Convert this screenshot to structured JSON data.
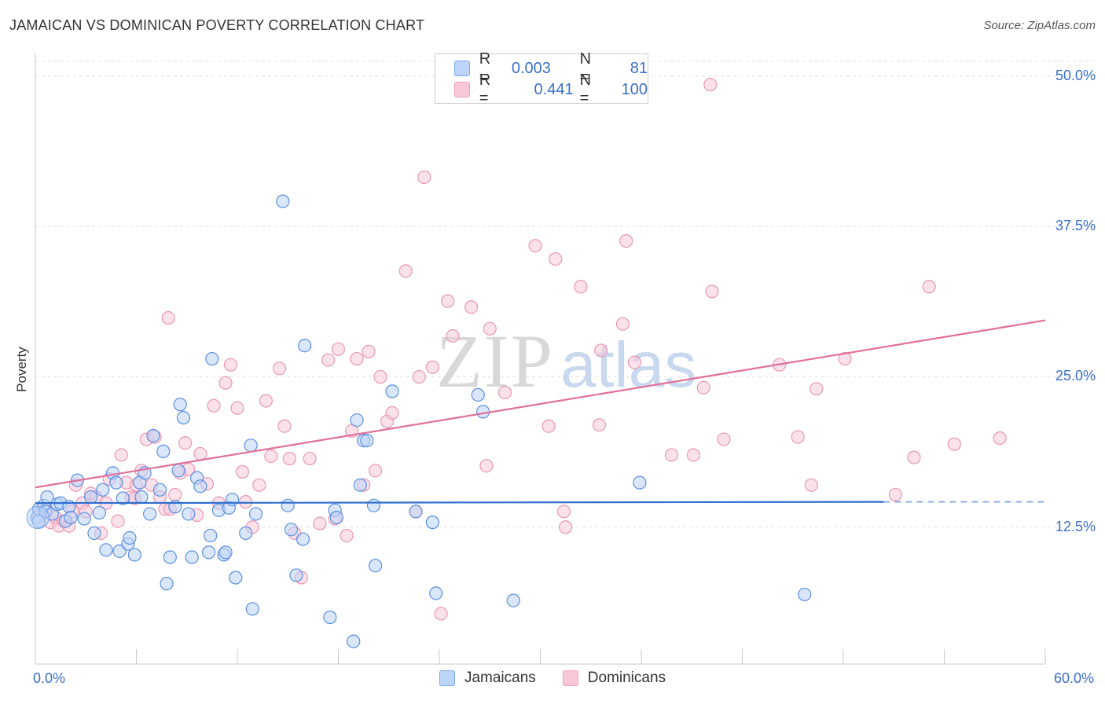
{
  "header": {
    "title": "JAMAICAN VS DOMINICAN POVERTY CORRELATION CHART",
    "source": "Source: ZipAtlas.com"
  },
  "legend": {
    "rows": [
      {
        "r_label": "R =",
        "r_value": "0.003",
        "n_label": "N =",
        "n_value": "81",
        "color": "#7aaaf0",
        "fill": "#bcd4f7"
      },
      {
        "r_label": "R =",
        "r_value": "0.441",
        "n_label": "N =",
        "n_value": "100",
        "color": "#f0a0bb",
        "fill": "#f8c8d8"
      }
    ]
  },
  "bottom_legend": [
    {
      "label": "Jamaicans",
      "color": "#7aaaf0",
      "fill": "#bcd4f7"
    },
    {
      "label": "Dominicans",
      "color": "#f0a0bb",
      "fill": "#f8c8d8"
    }
  ],
  "watermark": {
    "zip": "ZIP",
    "atlas": "atlas"
  },
  "chart_data": {
    "type": "scatter",
    "title": "JAMAICAN VS DOMINICAN POVERTY CORRELATION CHART",
    "xlabel": "",
    "ylabel": "Poverty",
    "xlim": [
      0,
      60
    ],
    "ylim": [
      0,
      50
    ],
    "x_tick_labels": [
      "0.0%",
      "60.0%"
    ],
    "y_tick_labels": [
      {
        "value": 12.5,
        "label": "12.5%"
      },
      {
        "value": 25.0,
        "label": "25.0%"
      },
      {
        "value": 37.5,
        "label": "37.5%"
      },
      {
        "value": 50.0,
        "label": "50.0%"
      }
    ],
    "grid": true,
    "series": [
      {
        "name": "Jamaicans",
        "color": "#7aaaf0",
        "trend": {
          "x": [
            0,
            50.4
          ],
          "y": [
            14.5,
            14.6
          ],
          "dashed_to": 60
        },
        "points": [
          [
            0.1,
            13.3
          ],
          [
            0.2,
            14.0
          ],
          [
            0.5,
            14.3
          ],
          [
            0.6,
            13.8
          ],
          [
            0.7,
            15.0
          ],
          [
            1.0,
            13.6
          ],
          [
            1.3,
            14.4
          ],
          [
            1.5,
            14.5
          ],
          [
            1.8,
            13.0
          ],
          [
            2.0,
            14.2
          ],
          [
            2.1,
            13.3
          ],
          [
            2.5,
            16.4
          ],
          [
            2.9,
            13.2
          ],
          [
            3.3,
            15.0
          ],
          [
            3.5,
            12.0
          ],
          [
            3.8,
            13.7
          ],
          [
            4.0,
            15.6
          ],
          [
            4.2,
            10.6
          ],
          [
            4.6,
            17.0
          ],
          [
            4.8,
            16.2
          ],
          [
            5.0,
            10.5
          ],
          [
            5.2,
            14.9
          ],
          [
            5.5,
            11.1
          ],
          [
            5.6,
            11.6
          ],
          [
            5.9,
            10.2
          ],
          [
            6.2,
            16.2
          ],
          [
            6.3,
            15.0
          ],
          [
            6.5,
            17.0
          ],
          [
            6.8,
            13.6
          ],
          [
            7.0,
            20.1
          ],
          [
            7.4,
            15.6
          ],
          [
            7.6,
            18.8
          ],
          [
            7.8,
            7.8
          ],
          [
            8.0,
            10.0
          ],
          [
            8.3,
            14.2
          ],
          [
            8.5,
            17.2
          ],
          [
            8.6,
            22.7
          ],
          [
            8.8,
            21.6
          ],
          [
            9.1,
            13.6
          ],
          [
            9.3,
            10.0
          ],
          [
            9.6,
            16.6
          ],
          [
            9.8,
            15.9
          ],
          [
            10.3,
            10.4
          ],
          [
            10.4,
            11.8
          ],
          [
            10.5,
            26.5
          ],
          [
            10.9,
            13.9
          ],
          [
            11.2,
            10.2
          ],
          [
            11.3,
            10.4
          ],
          [
            11.5,
            14.1
          ],
          [
            11.7,
            14.8
          ],
          [
            11.9,
            8.3
          ],
          [
            12.5,
            12.0
          ],
          [
            12.8,
            19.3
          ],
          [
            12.9,
            5.7
          ],
          [
            13.1,
            13.6
          ],
          [
            14.7,
            39.6
          ],
          [
            15.0,
            14.3
          ],
          [
            15.2,
            12.3
          ],
          [
            15.5,
            8.5
          ],
          [
            15.9,
            11.5
          ],
          [
            16.0,
            27.6
          ],
          [
            17.5,
            5.0
          ],
          [
            17.8,
            13.9
          ],
          [
            17.9,
            13.3
          ],
          [
            18.9,
            3.0
          ],
          [
            19.1,
            21.4
          ],
          [
            19.3,
            16.0
          ],
          [
            19.5,
            19.7
          ],
          [
            19.7,
            19.7
          ],
          [
            20.1,
            14.3
          ],
          [
            20.2,
            9.3
          ],
          [
            21.2,
            23.8
          ],
          [
            22.6,
            13.8
          ],
          [
            23.6,
            12.9
          ],
          [
            23.8,
            7.0
          ],
          [
            26.3,
            23.5
          ],
          [
            26.6,
            22.1
          ],
          [
            28.4,
            6.4
          ],
          [
            35.9,
            16.2
          ],
          [
            45.7,
            6.9
          ],
          [
            0.2,
            13.0
          ]
        ],
        "sizes_note": "one large point near origin"
      },
      {
        "name": "Dominicans",
        "color": "#f0a0bb",
        "trend": {
          "x": [
            0,
            60
          ],
          "y": [
            15.8,
            29.7
          ]
        },
        "points": [
          [
            0.2,
            13.5
          ],
          [
            0.6,
            14.0
          ],
          [
            0.9,
            12.9
          ],
          [
            1.2,
            13.3
          ],
          [
            1.4,
            12.6
          ],
          [
            1.7,
            13.0
          ],
          [
            2.0,
            12.6
          ],
          [
            2.2,
            13.8
          ],
          [
            2.4,
            16.0
          ],
          [
            2.8,
            14.5
          ],
          [
            3.0,
            13.8
          ],
          [
            3.3,
            15.3
          ],
          [
            3.6,
            15.0
          ],
          [
            3.9,
            12.0
          ],
          [
            4.2,
            14.5
          ],
          [
            4.4,
            16.5
          ],
          [
            4.9,
            13.0
          ],
          [
            5.1,
            18.5
          ],
          [
            5.4,
            16.2
          ],
          [
            5.7,
            15.0
          ],
          [
            5.9,
            14.9
          ],
          [
            6.0,
            16.0
          ],
          [
            6.3,
            17.2
          ],
          [
            6.6,
            19.8
          ],
          [
            6.9,
            16.0
          ],
          [
            7.1,
            20.0
          ],
          [
            7.4,
            15.0
          ],
          [
            7.7,
            14.0
          ],
          [
            7.9,
            29.9
          ],
          [
            8.0,
            14.0
          ],
          [
            8.3,
            15.2
          ],
          [
            8.6,
            17.0
          ],
          [
            8.9,
            19.5
          ],
          [
            9.1,
            17.3
          ],
          [
            9.6,
            13.5
          ],
          [
            9.8,
            18.6
          ],
          [
            10.2,
            16.1
          ],
          [
            10.6,
            22.6
          ],
          [
            10.9,
            14.5
          ],
          [
            11.3,
            24.5
          ],
          [
            11.6,
            26.0
          ],
          [
            12.0,
            22.4
          ],
          [
            12.3,
            17.1
          ],
          [
            12.5,
            14.6
          ],
          [
            12.9,
            12.5
          ],
          [
            13.3,
            16.0
          ],
          [
            13.7,
            23.0
          ],
          [
            14.0,
            18.4
          ],
          [
            14.5,
            25.7
          ],
          [
            14.8,
            20.9
          ],
          [
            15.1,
            18.2
          ],
          [
            15.4,
            12.0
          ],
          [
            15.8,
            8.3
          ],
          [
            16.3,
            18.2
          ],
          [
            16.9,
            12.8
          ],
          [
            17.4,
            26.4
          ],
          [
            17.8,
            13.2
          ],
          [
            18.0,
            27.3
          ],
          [
            18.5,
            11.8
          ],
          [
            18.8,
            20.5
          ],
          [
            19.1,
            26.5
          ],
          [
            19.5,
            16.0
          ],
          [
            19.8,
            27.1
          ],
          [
            20.2,
            17.2
          ],
          [
            20.5,
            25.0
          ],
          [
            20.9,
            21.3
          ],
          [
            21.2,
            22.0
          ],
          [
            22.0,
            33.8
          ],
          [
            22.6,
            13.8
          ],
          [
            22.8,
            25.0
          ],
          [
            23.1,
            41.6
          ],
          [
            23.6,
            25.8
          ],
          [
            24.1,
            5.3
          ],
          [
            24.5,
            31.3
          ],
          [
            24.8,
            28.4
          ],
          [
            25.9,
            30.8
          ],
          [
            26.8,
            17.6
          ],
          [
            27.0,
            29.0
          ],
          [
            27.9,
            23.7
          ],
          [
            29.7,
            35.9
          ],
          [
            30.5,
            20.9
          ],
          [
            30.9,
            34.8
          ],
          [
            31.4,
            13.8
          ],
          [
            31.5,
            12.5
          ],
          [
            32.4,
            32.5
          ],
          [
            33.5,
            21.0
          ],
          [
            33.6,
            27.2
          ],
          [
            34.9,
            29.4
          ],
          [
            35.1,
            36.3
          ],
          [
            35.6,
            26.2
          ],
          [
            37.8,
            18.5
          ],
          [
            39.1,
            18.5
          ],
          [
            39.7,
            24.1
          ],
          [
            40.1,
            49.3
          ],
          [
            40.2,
            32.1
          ],
          [
            40.9,
            19.8
          ],
          [
            44.2,
            26.0
          ],
          [
            45.3,
            20.0
          ],
          [
            46.1,
            16.0
          ],
          [
            48.1,
            26.5
          ]
        ]
      }
    ],
    "extra_points_note": "points near 46.4/24.0, 51.1/15.2, 52.2/18.3, 53.1/32.5, 54.6/19.4, 57.3/19.9 also present",
    "extra_dominican_points": [
      [
        46.4,
        24.0
      ],
      [
        51.1,
        15.2
      ],
      [
        52.2,
        18.3
      ],
      [
        53.1,
        32.5
      ],
      [
        54.6,
        19.4
      ],
      [
        57.3,
        19.9
      ]
    ]
  }
}
